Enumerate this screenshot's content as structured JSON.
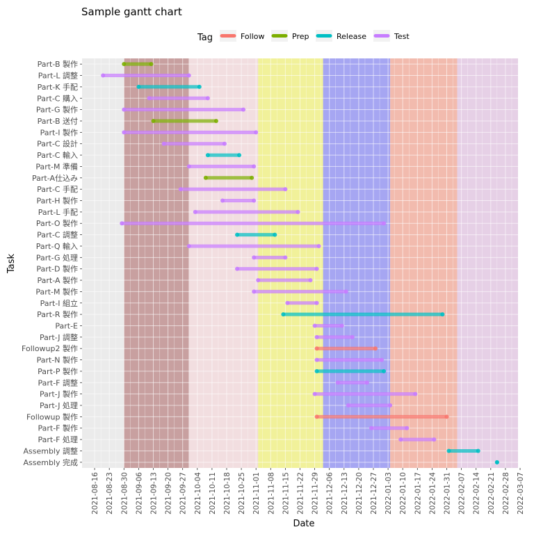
{
  "chart_data": {
    "type": "gantt",
    "title": "Sample gantt chart",
    "xlabel": "Date",
    "ylabel": "Task",
    "legend": {
      "title": "Tag",
      "position": "top",
      "entries": [
        {
          "name": "Follow",
          "color": "#F8766D"
        },
        {
          "name": "Prep",
          "color": "#7CAE00"
        },
        {
          "name": "Release",
          "color": "#00BFC4"
        },
        {
          "name": "Test",
          "color": "#C77CFF"
        }
      ]
    },
    "xlim": [
      "2021-08-10",
      "2022-03-06"
    ],
    "x_ticks": [
      "2021-08-16",
      "2021-08-23",
      "2021-08-30",
      "2021-09-06",
      "2021-09-13",
      "2021-09-20",
      "2021-09-27",
      "2021-10-04",
      "2021-10-11",
      "2021-10-18",
      "2021-10-25",
      "2021-11-01",
      "2021-11-08",
      "2021-11-15",
      "2021-11-22",
      "2021-11-29",
      "2021-12-06",
      "2021-12-13",
      "2021-12-20",
      "2021-12-27",
      "2022-01-03",
      "2022-01-10",
      "2022-01-17",
      "2022-01-24",
      "2022-01-31",
      "2022-02-07",
      "2022-02-14",
      "2022-02-21",
      "2022-02-28",
      "2022-03-07"
    ],
    "grid": true,
    "phases": [
      {
        "start": "2021-08-30",
        "end": "2021-09-30",
        "color": "#C8A0A0"
      },
      {
        "start": "2021-09-30",
        "end": "2021-11-02",
        "color": "#F2DEE0"
      },
      {
        "start": "2021-11-02",
        "end": "2021-12-03",
        "color": "#F1F19A"
      },
      {
        "start": "2021-12-03",
        "end": "2022-01-04",
        "color": "#A6A6F2"
      },
      {
        "start": "2022-01-04",
        "end": "2022-02-05",
        "color": "#F2BBAE"
      },
      {
        "start": "2022-02-05",
        "end": "2022-03-06",
        "color": "#E6D0E6"
      }
    ],
    "tasks": [
      {
        "name": "Part-B 製作",
        "tag": "Prep",
        "start": "2021-08-30",
        "end": "2021-09-12"
      },
      {
        "name": "Part-L 調整",
        "tag": "Test",
        "start": "2021-08-20",
        "end": "2021-09-30"
      },
      {
        "name": "Part-K 手配",
        "tag": "Release",
        "start": "2021-09-06",
        "end": "2021-10-05"
      },
      {
        "name": "Part-C 購入",
        "tag": "Test",
        "start": "2021-09-11",
        "end": "2021-10-09"
      },
      {
        "name": "Part-G 製作",
        "tag": "Test",
        "start": "2021-08-30",
        "end": "2021-10-26"
      },
      {
        "name": "Part-B 送付",
        "tag": "Prep",
        "start": "2021-09-13",
        "end": "2021-10-13"
      },
      {
        "name": "Part-I 製作",
        "tag": "Test",
        "start": "2021-08-30",
        "end": "2021-11-01"
      },
      {
        "name": "Part-C 設計",
        "tag": "Test",
        "start": "2021-09-18",
        "end": "2021-10-17"
      },
      {
        "name": "Part-C 輸入",
        "tag": "Release",
        "start": "2021-10-09",
        "end": "2021-10-24"
      },
      {
        "name": "Part-M 準備",
        "tag": "Test",
        "start": "2021-09-30",
        "end": "2021-10-31"
      },
      {
        "name": "Part-A仕込み",
        "tag": "Prep",
        "start": "2021-10-08",
        "end": "2021-10-30"
      },
      {
        "name": "Part-C 手配",
        "tag": "Test",
        "start": "2021-09-26",
        "end": "2021-11-15"
      },
      {
        "name": "Part-H 製作",
        "tag": "Test",
        "start": "2021-10-16",
        "end": "2021-10-31"
      },
      {
        "name": "Part-L 手配",
        "tag": "Test",
        "start": "2021-10-03",
        "end": "2021-11-21"
      },
      {
        "name": "Part-O 製作",
        "tag": "Test",
        "start": "2021-08-29",
        "end": "2022-01-01"
      },
      {
        "name": "Part-C 調整",
        "tag": "Release",
        "start": "2021-10-23",
        "end": "2021-11-10"
      },
      {
        "name": "Part-Q 輸入",
        "tag": "Test",
        "start": "2021-09-30",
        "end": "2021-12-01"
      },
      {
        "name": "Part-G 処理",
        "tag": "Test",
        "start": "2021-10-31",
        "end": "2021-11-15"
      },
      {
        "name": "Part-D 製作",
        "tag": "Test",
        "start": "2021-10-23",
        "end": "2021-11-30"
      },
      {
        "name": "Part-A 製作",
        "tag": "Test",
        "start": "2021-11-02",
        "end": "2021-11-27"
      },
      {
        "name": "Part-M 製作",
        "tag": "Test",
        "start": "2021-10-31",
        "end": "2021-12-14"
      },
      {
        "name": "Part-I 組立",
        "tag": "Test",
        "start": "2021-11-16",
        "end": "2021-11-30"
      },
      {
        "name": "Part-R 製作",
        "tag": "Release",
        "start": "2021-11-14",
        "end": "2022-01-29"
      },
      {
        "name": "Part-E",
        "tag": "Test",
        "start": "2021-11-29",
        "end": "2021-12-12"
      },
      {
        "name": "Part-J 調整",
        "tag": "Test",
        "start": "2021-11-30",
        "end": "2021-12-17"
      },
      {
        "name": "Followup2 製作",
        "tag": "Follow",
        "start": "2021-11-30",
        "end": "2021-12-28"
      },
      {
        "name": "Part-N 製作",
        "tag": "Test",
        "start": "2021-11-30",
        "end": "2021-12-31"
      },
      {
        "name": "Part-P 製作",
        "tag": "Release",
        "start": "2021-11-30",
        "end": "2022-01-01"
      },
      {
        "name": "Part-F 調整",
        "tag": "Test",
        "start": "2021-12-10",
        "end": "2021-12-24"
      },
      {
        "name": "Part-J 製作",
        "tag": "Test",
        "start": "2021-11-29",
        "end": "2022-01-16"
      },
      {
        "name": "Part-J 処理",
        "tag": "Test",
        "start": "2021-12-15",
        "end": "2022-01-04"
      },
      {
        "name": "Followup 製作",
        "tag": "Follow",
        "start": "2021-11-30",
        "end": "2022-01-31"
      },
      {
        "name": "Part-F 製作",
        "tag": "Test",
        "start": "2021-12-26",
        "end": "2022-01-12"
      },
      {
        "name": "Part-F 処理",
        "tag": "Test",
        "start": "2022-01-09",
        "end": "2022-01-25"
      },
      {
        "name": "Assembly 調整",
        "tag": "Release",
        "start": "2022-02-01",
        "end": "2022-02-15"
      },
      {
        "name": "Assembly 完成",
        "tag": "Release",
        "start": "2022-02-24",
        "end": "2022-02-24"
      }
    ]
  }
}
